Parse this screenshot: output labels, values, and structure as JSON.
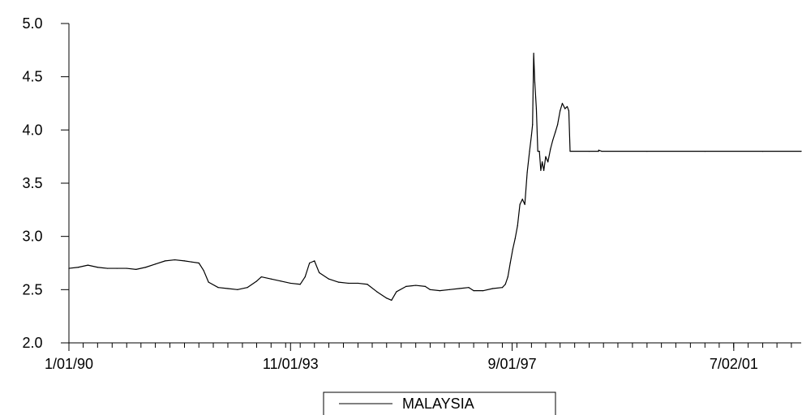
{
  "chart_data": {
    "type": "line",
    "title": "",
    "xlabel": "",
    "ylabel": "",
    "x_range": [
      "1990-01-01",
      "2002-09-01"
    ],
    "ylim": [
      2.0,
      5.0
    ],
    "y_ticks": [
      2.0,
      2.5,
      3.0,
      3.5,
      4.0,
      4.5,
      5.0
    ],
    "y_tick_labels": [
      "2.0",
      "2.5",
      "3.0",
      "3.5",
      "4.0",
      "4.5",
      "5.0"
    ],
    "x_tick_labels": [
      {
        "date": "1990-01-01",
        "label": "1/01/90"
      },
      {
        "date": "1993-11-01",
        "label": "11/01/93"
      },
      {
        "date": "1997-09-01",
        "label": "9/01/97"
      },
      {
        "date": "2001-07-02",
        "label": "7/02/01"
      }
    ],
    "grid": false,
    "legend_position": "bottom-center",
    "line_color": "#000000",
    "series": [
      {
        "name": "MALAYSIA",
        "points": [
          [
            "1990-01-01",
            2.7
          ],
          [
            "1990-03-01",
            2.71
          ],
          [
            "1990-05-01",
            2.73
          ],
          [
            "1990-07-01",
            2.71
          ],
          [
            "1990-09-01",
            2.7
          ],
          [
            "1990-11-01",
            2.7
          ],
          [
            "1991-01-01",
            2.7
          ],
          [
            "1991-03-01",
            2.69
          ],
          [
            "1991-05-01",
            2.71
          ],
          [
            "1991-07-01",
            2.74
          ],
          [
            "1991-09-01",
            2.77
          ],
          [
            "1991-11-01",
            2.78
          ],
          [
            "1992-01-01",
            2.77
          ],
          [
            "1992-02-15",
            2.76
          ],
          [
            "1992-04-01",
            2.75
          ],
          [
            "1992-05-01",
            2.68
          ],
          [
            "1992-06-01",
            2.57
          ],
          [
            "1992-08-01",
            2.52
          ],
          [
            "1992-10-01",
            2.51
          ],
          [
            "1992-12-01",
            2.5
          ],
          [
            "1993-02-01",
            2.52
          ],
          [
            "1993-04-01",
            2.58
          ],
          [
            "1993-05-01",
            2.62
          ],
          [
            "1993-07-01",
            2.6
          ],
          [
            "1993-09-01",
            2.58
          ],
          [
            "1993-11-01",
            2.56
          ],
          [
            "1994-01-01",
            2.55
          ],
          [
            "1994-02-01",
            2.62
          ],
          [
            "1994-03-01",
            2.75
          ],
          [
            "1994-04-01",
            2.77
          ],
          [
            "1994-05-01",
            2.66
          ],
          [
            "1994-07-01",
            2.6
          ],
          [
            "1994-09-01",
            2.57
          ],
          [
            "1994-11-01",
            2.56
          ],
          [
            "1995-01-01",
            2.56
          ],
          [
            "1995-03-01",
            2.55
          ],
          [
            "1995-05-01",
            2.48
          ],
          [
            "1995-07-01",
            2.42
          ],
          [
            "1995-08-01",
            2.4
          ],
          [
            "1995-09-01",
            2.48
          ],
          [
            "1995-11-01",
            2.53
          ],
          [
            "1996-01-01",
            2.54
          ],
          [
            "1996-03-01",
            2.53
          ],
          [
            "1996-04-01",
            2.5
          ],
          [
            "1996-06-01",
            2.49
          ],
          [
            "1996-08-01",
            2.5
          ],
          [
            "1996-10-01",
            2.51
          ],
          [
            "1996-12-01",
            2.52
          ],
          [
            "1997-01-01",
            2.49
          ],
          [
            "1997-03-01",
            2.49
          ],
          [
            "1997-05-01",
            2.51
          ],
          [
            "1997-07-01",
            2.52
          ],
          [
            "1997-07-20",
            2.55
          ],
          [
            "1997-08-05",
            2.62
          ],
          [
            "1997-08-20",
            2.75
          ],
          [
            "1997-09-05",
            2.88
          ],
          [
            "1997-09-20",
            2.98
          ],
          [
            "1997-10-05",
            3.1
          ],
          [
            "1997-10-20",
            3.3
          ],
          [
            "1997-11-05",
            3.35
          ],
          [
            "1997-11-20",
            3.3
          ],
          [
            "1997-12-05",
            3.6
          ],
          [
            "1997-12-20",
            3.8
          ],
          [
            "1998-01-01",
            3.95
          ],
          [
            "1998-01-08",
            4.05
          ],
          [
            "1998-01-15",
            4.72
          ],
          [
            "1998-01-22",
            4.45
          ],
          [
            "1998-02-01",
            4.2
          ],
          [
            "1998-02-10",
            3.8
          ],
          [
            "1998-02-20",
            3.8
          ],
          [
            "1998-03-01",
            3.62
          ],
          [
            "1998-03-10",
            3.7
          ],
          [
            "1998-03-20",
            3.62
          ],
          [
            "1998-04-01",
            3.75
          ],
          [
            "1998-04-15",
            3.7
          ],
          [
            "1998-05-01",
            3.82
          ],
          [
            "1998-05-15",
            3.9
          ],
          [
            "1998-06-01",
            3.98
          ],
          [
            "1998-06-15",
            4.05
          ],
          [
            "1998-07-01",
            4.18
          ],
          [
            "1998-07-15",
            4.25
          ],
          [
            "1998-08-01",
            4.2
          ],
          [
            "1998-08-15",
            4.22
          ],
          [
            "1998-08-25",
            4.18
          ],
          [
            "1998-09-02",
            3.8
          ],
          [
            "1999-01-01",
            3.8
          ],
          [
            "1999-03-01",
            3.8
          ],
          [
            "1999-03-02",
            3.81
          ],
          [
            "1999-03-20",
            3.8
          ],
          [
            "2000-01-01",
            3.8
          ],
          [
            "2001-01-01",
            3.8
          ],
          [
            "2002-01-01",
            3.8
          ],
          [
            "2002-09-01",
            3.8
          ]
        ]
      }
    ]
  }
}
